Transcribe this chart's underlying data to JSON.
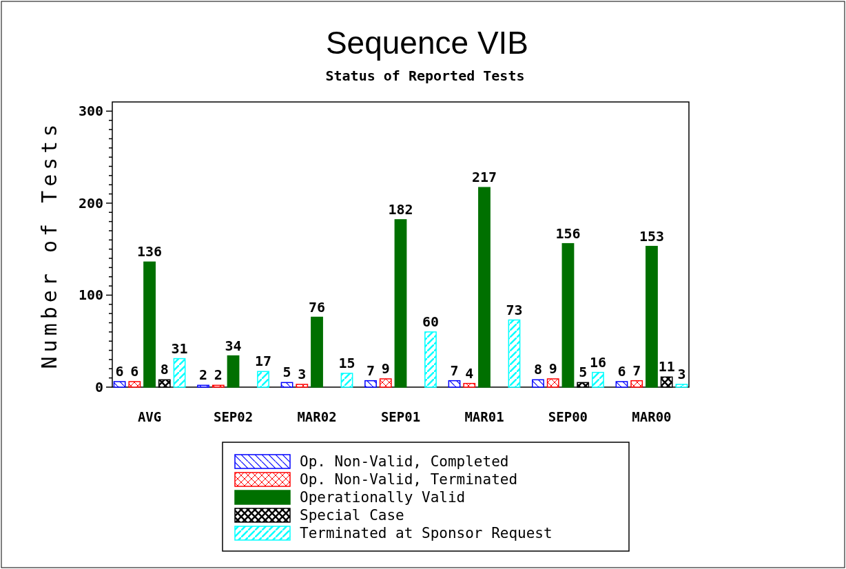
{
  "chart_data": {
    "type": "bar",
    "title": "Sequence VIB",
    "subtitle": "Status of Reported Tests",
    "ylabel": "Number of Tests",
    "categories": [
      "AVG",
      "SEP02",
      "MAR02",
      "SEP01",
      "MAR01",
      "SEP00",
      "MAR00"
    ],
    "series": [
      {
        "name": "Op. Non-Valid, Completed",
        "color": "#0000ff",
        "values": [
          6,
          2,
          5,
          7,
          7,
          8,
          6
        ]
      },
      {
        "name": "Op. Non-Valid, Terminated",
        "color": "#ff0000",
        "values": [
          6,
          2,
          3,
          9,
          4,
          9,
          7
        ]
      },
      {
        "name": "Operationally Valid",
        "color": "#007000",
        "values": [
          136,
          34,
          76,
          182,
          217,
          156,
          153
        ]
      },
      {
        "name": "Special Case",
        "color": "#000000",
        "values": [
          8,
          null,
          null,
          null,
          null,
          5,
          11
        ]
      },
      {
        "name": "Terminated at Sponsor Request",
        "color": "#00ffff",
        "values": [
          31,
          17,
          15,
          60,
          73,
          16,
          3
        ]
      }
    ],
    "ylim": [
      0,
      310
    ],
    "yticks": [
      0,
      {
        "value": 10,
        "label": null
      },
      {
        "value": 20,
        "label": null
      },
      {
        "value": 30,
        "label": null
      },
      {
        "value": 40,
        "label": null
      },
      {
        "value": 50,
        "label": null
      },
      {
        "value": 60,
        "label": null
      },
      {
        "value": 70,
        "label": null
      },
      {
        "value": 80,
        "label": null
      },
      {
        "value": 90,
        "label": null
      },
      100,
      {
        "value": 110,
        "label": null
      },
      {
        "value": 120,
        "label": null
      },
      {
        "value": 130,
        "label": null
      },
      {
        "value": 140,
        "label": null
      },
      {
        "value": 150,
        "label": null
      },
      {
        "value": 160,
        "label": null
      },
      {
        "value": 170,
        "label": null
      },
      {
        "value": 180,
        "label": null
      },
      {
        "value": 190,
        "label": null
      },
      200,
      {
        "value": 210,
        "label": null
      },
      {
        "value": 220,
        "label": null
      },
      {
        "value": 230,
        "label": null
      },
      {
        "value": 240,
        "label": null
      },
      {
        "value": 250,
        "label": null
      },
      {
        "value": 260,
        "label": null
      },
      {
        "value": 270,
        "label": null
      },
      {
        "value": 280,
        "label": null
      },
      {
        "value": 290,
        "label": null
      },
      300
    ],
    "data_labels": true,
    "legend": "bottom",
    "grid": false
  }
}
